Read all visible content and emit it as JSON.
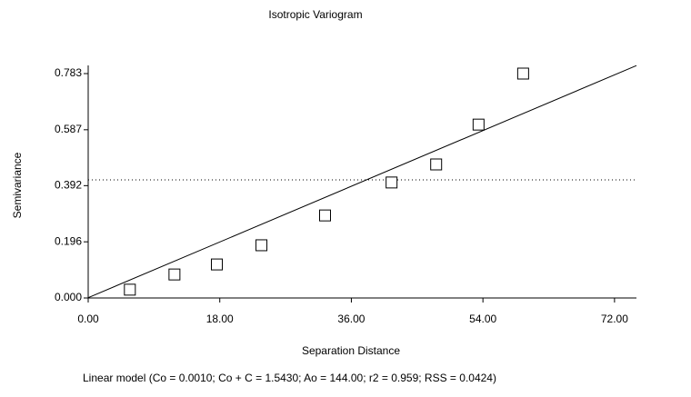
{
  "chart_data": {
    "type": "scatter",
    "title": "Isotropic Variogram",
    "x_label": "Separation Distance",
    "y_label": "Semivariance",
    "footer": "Linear model (Co = 0.0010; Co + C = 1.5430; Ao = 144.00; r2 = 0.959; RSS = 0.0424)",
    "x": [
      5.7,
      11.8,
      17.6,
      23.7,
      32.4,
      41.5,
      47.6,
      53.4,
      59.5
    ],
    "values": [
      0.029,
      0.082,
      0.117,
      0.184,
      0.288,
      0.403,
      0.466,
      0.605,
      0.783
    ],
    "color": "#000000",
    "model_line": {
      "x": [
        0,
        75
      ],
      "values": [
        0.001,
        0.811
      ]
    },
    "reference_line": 0.412,
    "xlim": [
      0,
      75
    ],
    "ylim": [
      0,
      0.783
    ],
    "xticks": [
      {
        "value": 0,
        "label": "0.00"
      },
      {
        "value": 18,
        "label": "18.00"
      },
      {
        "value": 36,
        "label": "36.00"
      },
      {
        "value": 54,
        "label": "54.00"
      },
      {
        "value": 72,
        "label": "72.00"
      }
    ],
    "yticks": [
      {
        "value": 0,
        "label": "0.000"
      },
      0.196,
      0.392,
      0.587,
      0.783
    ]
  }
}
